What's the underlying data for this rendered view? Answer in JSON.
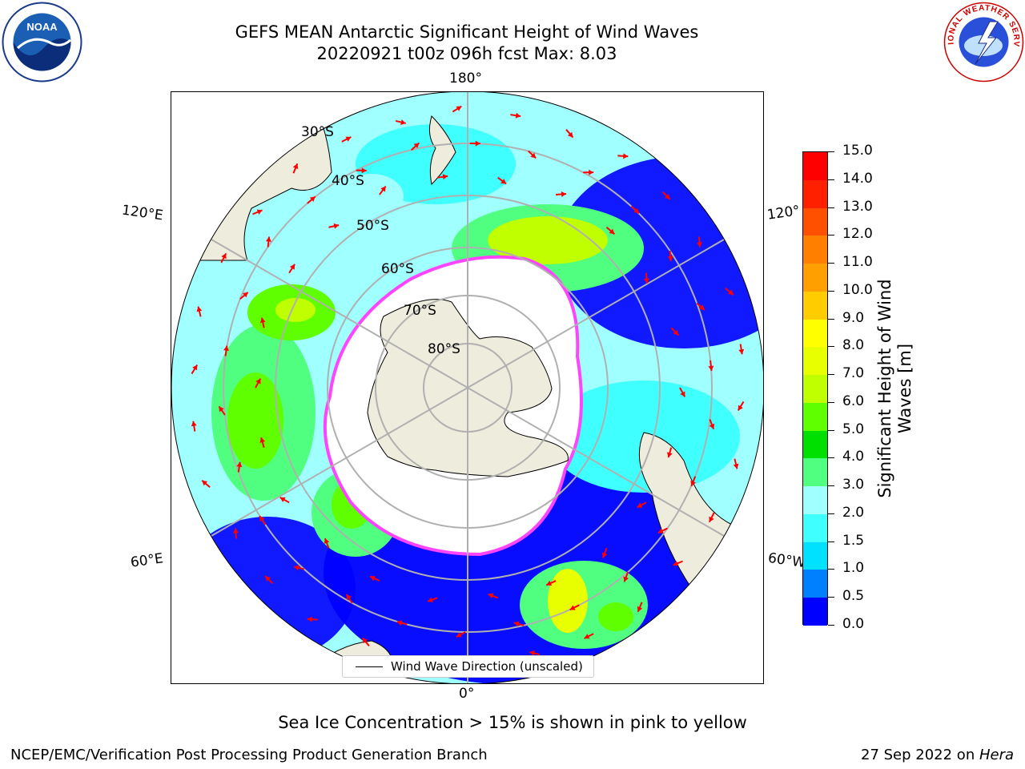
{
  "title": {
    "line1": "GEFS MEAN Antarctic Significant Height of Wind Waves",
    "line2": "20220921 t00z 096h fcst   Max: 8.03"
  },
  "map": {
    "projection": "south-polar-stereographic",
    "longitude_labels": {
      "top": "180°",
      "bottom": "0°",
      "upper_left": "120°E",
      "upper_right": "120°",
      "lower_left": "60°E",
      "lower_right": "60°W"
    },
    "latitude_labels": [
      "30°S",
      "40°S",
      "50°S",
      "60°S",
      "70°S",
      "80°S"
    ],
    "colors": {
      "land": "#eeecdc",
      "ice_edge": "#ff44ff",
      "arrows": "#ff0000",
      "grid": "#b0b0b0"
    }
  },
  "legend": {
    "label": "Wind Wave Direction (unscaled)"
  },
  "colorbar": {
    "title_line1": "Significant Height of Wind",
    "title_line2": "Waves [m]",
    "ticks": [
      "0.0",
      "0.5",
      "1.0",
      "1.5",
      "2.0",
      "3.0",
      "4.0",
      "5.0",
      "6.0",
      "7.0",
      "8.0",
      "9.0",
      "10.0",
      "11.0",
      "12.0",
      "13.0",
      "14.0",
      "15.0"
    ],
    "colors": [
      "#0000ff",
      "#0080ff",
      "#00e0ff",
      "#40ffff",
      "#a0ffff",
      "#50ff80",
      "#00e000",
      "#60ff00",
      "#c0ff00",
      "#e8ff00",
      "#ffff00",
      "#ffcc00",
      "#ffa000",
      "#ff8000",
      "#ff5000",
      "#ff2000",
      "#ff0000"
    ]
  },
  "notes": {
    "ice": "Sea Ice Concentration > 15% is shown in pink to yellow"
  },
  "footer": {
    "left": "NCEP/EMC/Verification Post Processing Product Generation Branch",
    "right_date": "27 Sep 2022 on ",
    "right_host": "Hera"
  },
  "logos": {
    "noaa_text": "NOAA",
    "nws_text": "NATIONAL WEATHER SERVICE"
  }
}
